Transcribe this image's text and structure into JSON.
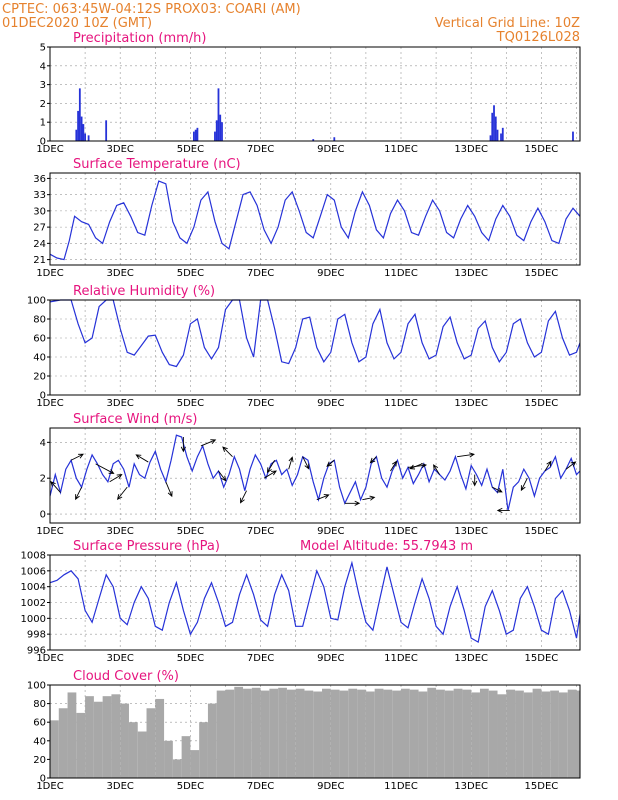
{
  "header": {
    "left1": "CPTEC:   063:45W-04:12S   PROX03: COARI (AM)",
    "left2": "01DEC2020 10Z (GMT)",
    "right1": "Vertical Grid Line: 10Z",
    "right2": "TQ0126L028"
  },
  "colors": {
    "line": "#2632d8",
    "bar": "#2632d8",
    "cloud": "#a8a8a8",
    "title": "#e6147e",
    "header": "#e6822e"
  },
  "x_ticks": [
    "1DEC",
    "3DEC",
    "5DEC",
    "7DEC",
    "9DEC",
    "11DEC",
    "13DEC",
    "15DEC"
  ],
  "x_tick_days": [
    0,
    2,
    4,
    6,
    8,
    10,
    12,
    14
  ],
  "chart_data": [
    {
      "id": "precip",
      "type": "bar",
      "title": "Precipitation (mm/h)",
      "xlim": [
        0,
        15.1
      ],
      "ylim": [
        0,
        5
      ],
      "yticks": [
        0,
        1,
        2,
        3,
        4,
        5
      ],
      "x": [
        0.75,
        0.8,
        0.85,
        0.9,
        0.95,
        1.0,
        1.1,
        1.6,
        4.1,
        4.15,
        4.2,
        4.7,
        4.75,
        4.8,
        4.85,
        4.9,
        7.5,
        8.1,
        12.55,
        12.6,
        12.65,
        12.7,
        12.75,
        12.85,
        12.9,
        14.9
      ],
      "values": [
        0.6,
        1.6,
        2.8,
        1.3,
        0.9,
        0.4,
        0.3,
        1.1,
        0.5,
        0.6,
        0.7,
        0.5,
        1.1,
        2.8,
        1.4,
        1.0,
        0.1,
        0.2,
        0.3,
        1.5,
        1.9,
        1.3,
        0.6,
        0.4,
        0.7,
        0.5
      ]
    },
    {
      "id": "temp",
      "type": "line",
      "title": "Surface Temperature (nC)",
      "xlim": [
        0,
        15.1
      ],
      "ylim": [
        20,
        37
      ],
      "yticks": [
        21,
        24,
        27,
        30,
        33,
        36
      ],
      "x": [
        0.0,
        0.2,
        0.4,
        0.55,
        0.7,
        0.9,
        1.1,
        1.3,
        1.5,
        1.7,
        1.9,
        2.1,
        2.3,
        2.5,
        2.7,
        2.9,
        3.1,
        3.3,
        3.5,
        3.7,
        3.9,
        4.1,
        4.3,
        4.5,
        4.7,
        4.9,
        5.1,
        5.3,
        5.5,
        5.7,
        5.9,
        6.1,
        6.3,
        6.5,
        6.7,
        6.9,
        7.1,
        7.3,
        7.5,
        7.7,
        7.9,
        8.1,
        8.3,
        8.5,
        8.7,
        8.9,
        9.1,
        9.3,
        9.5,
        9.7,
        9.9,
        10.1,
        10.3,
        10.5,
        10.7,
        10.9,
        11.1,
        11.3,
        11.5,
        11.7,
        11.9,
        12.1,
        12.3,
        12.5,
        12.7,
        12.9,
        13.1,
        13.3,
        13.5,
        13.7,
        13.9,
        14.1,
        14.3,
        14.5,
        14.7,
        14.9,
        15.1
      ],
      "values": [
        22.0,
        21.3,
        21.0,
        24.5,
        29.0,
        28.0,
        27.5,
        25.0,
        24.0,
        28.0,
        31.0,
        31.5,
        29.0,
        26.0,
        25.5,
        31.0,
        35.5,
        35.0,
        28.0,
        25.0,
        24.0,
        27.0,
        32.0,
        33.5,
        28.0,
        24.0,
        23.0,
        28.0,
        33.0,
        33.5,
        31.0,
        26.5,
        24.0,
        27.0,
        32.0,
        33.5,
        30.0,
        26.0,
        25.0,
        29.0,
        33.0,
        32.0,
        27.0,
        25.0,
        30.0,
        33.5,
        31.0,
        26.5,
        25.0,
        29.5,
        32.0,
        30.0,
        26.0,
        25.5,
        29.0,
        32.0,
        30.0,
        26.0,
        25.0,
        28.5,
        31.0,
        29.0,
        26.0,
        24.5,
        28.5,
        31.0,
        29.0,
        25.5,
        24.5,
        28.0,
        30.5,
        28.0,
        24.5,
        24.0,
        28.5,
        30.5,
        29.0
      ]
    },
    {
      "id": "rh",
      "type": "line",
      "title": "Relative Humidity (%)",
      "xlim": [
        0,
        15.1
      ],
      "ylim": [
        0,
        100
      ],
      "yticks": [
        0,
        20,
        40,
        60,
        80,
        100
      ],
      "x": [
        0.0,
        0.3,
        0.6,
        0.8,
        1.0,
        1.2,
        1.4,
        1.6,
        1.8,
        2.0,
        2.2,
        2.4,
        2.6,
        2.8,
        3.0,
        3.2,
        3.4,
        3.6,
        3.8,
        4.0,
        4.2,
        4.4,
        4.6,
        4.8,
        5.0,
        5.2,
        5.4,
        5.6,
        5.8,
        6.0,
        6.2,
        6.4,
        6.6,
        6.8,
        7.0,
        7.2,
        7.4,
        7.6,
        7.8,
        8.0,
        8.2,
        8.4,
        8.6,
        8.8,
        9.0,
        9.2,
        9.4,
        9.6,
        9.8,
        10.0,
        10.2,
        10.4,
        10.6,
        10.8,
        11.0,
        11.2,
        11.4,
        11.6,
        11.8,
        12.0,
        12.2,
        12.4,
        12.6,
        12.8,
        13.0,
        13.2,
        13.4,
        13.6,
        13.8,
        14.0,
        14.2,
        14.4,
        14.6,
        14.8,
        15.0,
        15.1
      ],
      "values": [
        98.0,
        100.0,
        100.0,
        75.0,
        55.0,
        60.0,
        93.0,
        100.0,
        100.0,
        70.0,
        45.0,
        42.0,
        52.0,
        62.0,
        63.0,
        45.0,
        32.0,
        30.0,
        42.0,
        75.0,
        80.0,
        50.0,
        38.0,
        50.0,
        90.0,
        100.0,
        100.0,
        60.0,
        40.0,
        100.0,
        100.0,
        70.0,
        35.0,
        33.0,
        50.0,
        80.0,
        82.0,
        50.0,
        35.0,
        45.0,
        80.0,
        85.0,
        55.0,
        35.0,
        40.0,
        75.0,
        90.0,
        55.0,
        38.0,
        45.0,
        75.0,
        85.0,
        55.0,
        38.0,
        42.0,
        72.0,
        82.0,
        55.0,
        38.0,
        42.0,
        70.0,
        78.0,
        50.0,
        35.0,
        45.0,
        75.0,
        80.0,
        55.0,
        40.0,
        45.0,
        78.0,
        88.0,
        60.0,
        42.0,
        45.0,
        55.0
      ]
    },
    {
      "id": "wind",
      "type": "line",
      "title": "Surface Wind (m/s)",
      "xlim": [
        0,
        15.1
      ],
      "ylim": [
        -0.5,
        4.8
      ],
      "yticks": [
        0,
        2,
        4
      ],
      "x": [
        0.0,
        0.15,
        0.3,
        0.45,
        0.6,
        0.75,
        0.9,
        1.05,
        1.2,
        1.35,
        1.5,
        1.65,
        1.8,
        1.95,
        2.1,
        2.25,
        2.4,
        2.55,
        2.7,
        2.85,
        3.0,
        3.15,
        3.3,
        3.45,
        3.6,
        3.75,
        3.9,
        4.05,
        4.2,
        4.35,
        4.5,
        4.65,
        4.8,
        4.95,
        5.1,
        5.25,
        5.4,
        5.55,
        5.7,
        5.85,
        6.0,
        6.15,
        6.3,
        6.45,
        6.6,
        6.75,
        6.9,
        7.05,
        7.2,
        7.35,
        7.5,
        7.65,
        7.8,
        7.95,
        8.1,
        8.25,
        8.4,
        8.55,
        8.7,
        8.85,
        9.0,
        9.15,
        9.3,
        9.45,
        9.6,
        9.75,
        9.9,
        10.05,
        10.2,
        10.35,
        10.5,
        10.65,
        10.8,
        10.95,
        11.1,
        11.25,
        11.4,
        11.55,
        11.7,
        11.85,
        12.0,
        12.15,
        12.3,
        12.45,
        12.6,
        12.75,
        12.9,
        13.05,
        13.2,
        13.35,
        13.5,
        13.65,
        13.8,
        13.95,
        14.1,
        14.25,
        14.4,
        14.55,
        14.7,
        14.85,
        15.0,
        15.1
      ],
      "values": [
        1.0,
        2.2,
        1.2,
        2.5,
        3.0,
        2.0,
        1.5,
        2.5,
        3.3,
        2.8,
        2.2,
        1.8,
        2.8,
        3.0,
        2.5,
        1.5,
        2.8,
        2.2,
        2.0,
        2.9,
        3.5,
        2.5,
        1.8,
        3.0,
        4.4,
        4.3,
        3.2,
        2.4,
        3.2,
        3.8,
        2.8,
        2.0,
        2.4,
        1.5,
        2.2,
        3.2,
        2.5,
        1.3,
        2.5,
        3.3,
        2.8,
        2.0,
        2.8,
        3.0,
        2.2,
        2.5,
        1.6,
        2.2,
        3.2,
        3.0,
        1.8,
        0.8,
        2.0,
        2.8,
        3.0,
        1.5,
        0.6,
        1.2,
        1.8,
        0.8,
        1.5,
        2.8,
        3.2,
        2.0,
        1.5,
        2.4,
        3.0,
        2.0,
        2.6,
        1.7,
        2.2,
        2.8,
        1.8,
        2.5,
        2.2,
        1.9,
        2.4,
        3.2,
        2.2,
        1.4,
        2.7,
        2.2,
        1.6,
        2.5,
        1.5,
        1.2,
        2.5,
        0.2,
        1.5,
        1.8,
        2.5,
        2.0,
        1.0,
        2.0,
        2.4,
        2.6,
        3.2,
        2.0,
        2.5,
        3.1,
        2.2,
        2.4
      ],
      "vectors_x": [
        0.3,
        0.6,
        0.9,
        1.3,
        1.7,
        2.2,
        2.8,
        3.3,
        3.8,
        4.3,
        4.8,
        5.2,
        5.6,
        6.1,
        6.4,
        6.8,
        7.2,
        7.6,
        8.1,
        8.4,
        8.9,
        9.3,
        9.7,
        10.2,
        10.6,
        11.1,
        11.6,
        12.1,
        12.6,
        13.1,
        13.6,
        14.1,
        14.7
      ],
      "vectors_u": [
        -0.8,
        1.0,
        -0.5,
        1.5,
        1.0,
        -0.8,
        -1.0,
        0.5,
        0.0,
        1.2,
        0.6,
        -0.8,
        -0.5,
        1.0,
        -0.6,
        0.3,
        0.5,
        1.0,
        -0.6,
        1.2,
        1.0,
        -0.5,
        0.5,
        1.5,
        -1.0,
        -0.5,
        1.4,
        0.0,
        0.8,
        -1.0,
        -0.5,
        0.5,
        0.8
      ],
      "vectors_v": [
        0.9,
        0.5,
        -1.0,
        -0.8,
        0.6,
        -1.0,
        0.6,
        -1.2,
        -1.2,
        0.5,
        -0.8,
        0.8,
        -1.0,
        0.6,
        -1.0,
        1.0,
        -1.0,
        0.4,
        -0.5,
        0.0,
        0.2,
        -0.5,
        0.8,
        0.2,
        -0.4,
        0.8,
        0.2,
        -0.9,
        -0.4,
        0.0,
        -1.0,
        0.8,
        0.6
      ]
    },
    {
      "id": "press",
      "type": "line",
      "title": "Surface Pressure (hPa)",
      "subtitle": "Model Altitude: 55.7943 m",
      "xlim": [
        0,
        15.1
      ],
      "ylim": [
        996,
        1008
      ],
      "yticks": [
        996,
        998,
        1000,
        1002,
        1004,
        1006,
        1008
      ],
      "x": [
        0.0,
        0.2,
        0.4,
        0.6,
        0.8,
        1.0,
        1.2,
        1.4,
        1.6,
        1.8,
        2.0,
        2.2,
        2.4,
        2.6,
        2.8,
        3.0,
        3.2,
        3.4,
        3.6,
        3.8,
        4.0,
        4.2,
        4.4,
        4.6,
        4.8,
        5.0,
        5.2,
        5.4,
        5.6,
        5.8,
        6.0,
        6.2,
        6.4,
        6.6,
        6.8,
        7.0,
        7.2,
        7.4,
        7.6,
        7.8,
        8.0,
        8.2,
        8.4,
        8.6,
        8.8,
        9.0,
        9.2,
        9.4,
        9.6,
        9.8,
        10.0,
        10.2,
        10.4,
        10.6,
        10.8,
        11.0,
        11.2,
        11.4,
        11.6,
        11.8,
        12.0,
        12.2,
        12.4,
        12.6,
        12.8,
        13.0,
        13.2,
        13.4,
        13.6,
        13.8,
        14.0,
        14.2,
        14.4,
        14.6,
        14.8,
        15.0,
        15.1
      ],
      "values": [
        1004.5,
        1004.8,
        1005.5,
        1006.0,
        1005.0,
        1001.0,
        999.5,
        1002.5,
        1005.5,
        1004.0,
        1000.0,
        999.2,
        1002.0,
        1004.0,
        1002.5,
        999.0,
        998.5,
        1002.0,
        1004.5,
        1001.0,
        998.0,
        999.5,
        1002.5,
        1004.5,
        1002.0,
        999.0,
        999.5,
        1003.0,
        1005.5,
        1003.0,
        999.8,
        999.0,
        1003.0,
        1005.5,
        1003.5,
        999.0,
        999.0,
        1002.5,
        1006.0,
        1004.0,
        1000.0,
        999.8,
        1004.0,
        1007.0,
        1003.0,
        999.5,
        998.5,
        1002.5,
        1006.5,
        1003.0,
        999.5,
        998.8,
        1002.0,
        1005.0,
        1002.5,
        999.0,
        998.0,
        1001.5,
        1004.0,
        1001.0,
        997.5,
        997.0,
        1001.5,
        1003.5,
        1001.0,
        998.0,
        998.5,
        1002.5,
        1004.0,
        1001.5,
        998.5,
        998.0,
        1002.5,
        1003.5,
        1001.0,
        997.5,
        1000.5
      ]
    },
    {
      "id": "cloud",
      "type": "bar",
      "title": "Cloud Cover (%)",
      "xlim": [
        0,
        15.1
      ],
      "ylim": [
        0,
        100
      ],
      "yticks": [
        0,
        20,
        40,
        60,
        80,
        100
      ],
      "x": [
        0.0,
        0.25,
        0.5,
        0.75,
        1.0,
        1.25,
        1.5,
        1.75,
        2.0,
        2.25,
        2.5,
        2.75,
        3.0,
        3.25,
        3.5,
        3.75,
        4.0,
        4.25,
        4.5,
        4.75,
        5.0,
        5.25,
        5.5,
        5.75,
        6.0,
        6.25,
        6.5,
        6.75,
        7.0,
        7.25,
        7.5,
        7.75,
        8.0,
        8.25,
        8.5,
        8.75,
        9.0,
        9.25,
        9.5,
        9.75,
        10.0,
        10.25,
        10.5,
        10.75,
        11.0,
        11.25,
        11.5,
        11.75,
        12.0,
        12.25,
        12.5,
        12.75,
        13.0,
        13.25,
        13.5,
        13.75,
        14.0,
        14.25,
        14.5,
        14.75,
        15.0
      ],
      "values": [
        62.0,
        75.0,
        92.0,
        70.0,
        88.0,
        82.0,
        88.0,
        90.0,
        80.0,
        60.0,
        50.0,
        75.0,
        85.0,
        40.0,
        20.0,
        45.0,
        30.0,
        60.0,
        80.0,
        94.0,
        95.0,
        98.0,
        96.0,
        97.0,
        94.0,
        96.0,
        97.0,
        95.0,
        96.0,
        94.0,
        93.0,
        96.0,
        95.0,
        94.0,
        96.0,
        95.0,
        93.0,
        96.0,
        95.0,
        94.0,
        96.0,
        95.0,
        93.0,
        97.0,
        95.0,
        94.0,
        96.0,
        95.0,
        92.0,
        96.0,
        94.0,
        90.0,
        95.0,
        94.0,
        92.0,
        96.0,
        93.0,
        94.0,
        92.0,
        95.0,
        94.0
      ]
    }
  ]
}
